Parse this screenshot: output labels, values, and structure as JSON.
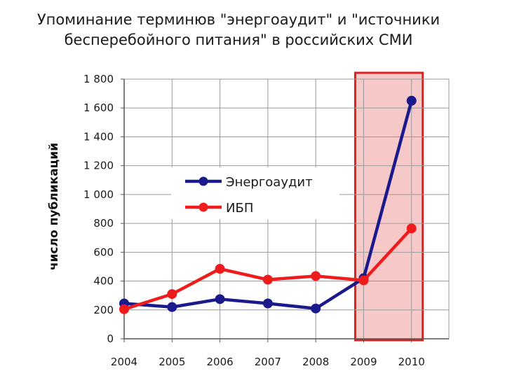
{
  "chart_data": {
    "type": "line",
    "title_lines": [
      "Упоминание терминюв \"энергоаудит\" и \"источники",
      "бесперебойного питания\" в российских СМИ"
    ],
    "ylabel": "число публикаций",
    "xlabel": "",
    "x": [
      "2004",
      "2005",
      "2006",
      "2007",
      "2008",
      "2009",
      "2010"
    ],
    "ylim": [
      0,
      1800
    ],
    "yticks": [
      {
        "value": 0,
        "label": "0"
      },
      {
        "value": 200,
        "label": "200"
      },
      {
        "value": 400,
        "label": "400"
      },
      {
        "value": 600,
        "label": "600"
      },
      {
        "value": 800,
        "label": "800"
      },
      {
        "value": 1000,
        "label": "1 000"
      },
      {
        "value": 1200,
        "label": "1 200"
      },
      {
        "value": 1400,
        "label": "1 400"
      },
      {
        "value": 1600,
        "label": "1 600"
      },
      {
        "value": 1800,
        "label": "1 800"
      }
    ],
    "grid": true,
    "legend_position": "center-left",
    "highlight_range": [
      "2009",
      "2010"
    ],
    "highlight_fill": "#f7c8c8",
    "highlight_stroke": "#e02020",
    "series": [
      {
        "name": "Энергоаудит",
        "color": "#1a1a8c",
        "values": [
          245,
          220,
          275,
          245,
          210,
          420,
          1650
        ]
      },
      {
        "name": "ИБП",
        "color": "#ee1c1c",
        "values": [
          205,
          310,
          485,
          410,
          435,
          405,
          765
        ]
      }
    ]
  }
}
